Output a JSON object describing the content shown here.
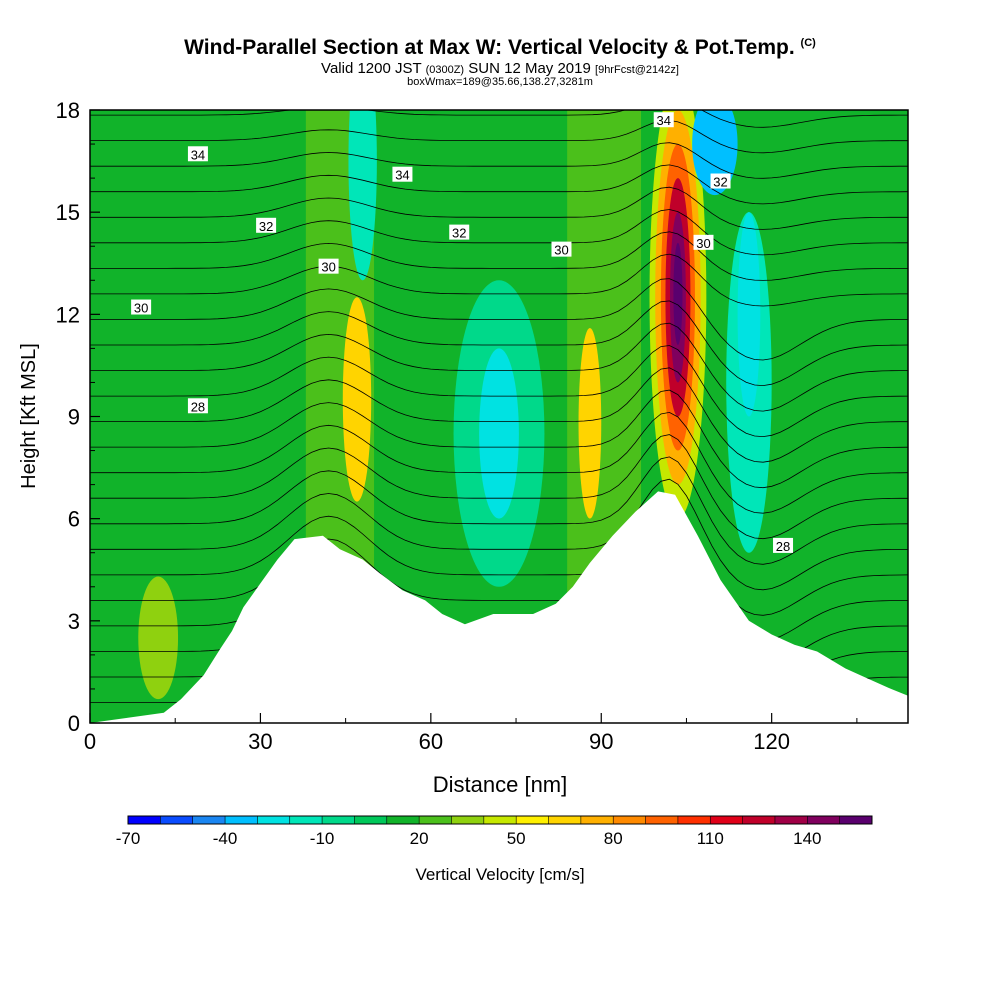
{
  "title": {
    "main": "Wind-Parallel Section at Max W: Vertical Velocity & Pot.Temp.",
    "copyright": "(C)",
    "valid_a": "Valid 1200 JST",
    "valid_z": "(0300Z)",
    "valid_b": "SUN 12 May 2019",
    "fcst": "[9hrFcst@2142z]",
    "box": "boxWmax=189@35.66,138.27,3281m"
  },
  "chart_data": {
    "type": "heatmap",
    "xlabel": "Distance [nm]",
    "ylabel": "Height [Kft MSL]",
    "xlim": [
      0,
      144
    ],
    "ylim": [
      0,
      18
    ],
    "x_ticks": [
      "0",
      "30",
      "60",
      "90",
      "120"
    ],
    "y_ticks": [
      "0",
      "3",
      "6",
      "9",
      "12",
      "15",
      "18"
    ],
    "colorbar": {
      "label": "Vertical Velocity [cm/s]",
      "tick_labels": [
        "-70",
        "-40",
        "-10",
        "20",
        "50",
        "80",
        "110",
        "140"
      ],
      "colors": [
        "#0000ff",
        "#0a4cff",
        "#1a86f2",
        "#00bfff",
        "#00e2e2",
        "#00e6b8",
        "#00d98a",
        "#00c85a",
        "#11b32a",
        "#4bc01b",
        "#8fd10f",
        "#c6e800",
        "#fff000",
        "#ffd400",
        "#ffb000",
        "#ff8a00",
        "#ff6200",
        "#ff3000",
        "#e00018",
        "#c0002a",
        "#a00046",
        "#80005e",
        "#5a006e"
      ]
    },
    "contour_labels": [
      {
        "text": "34",
        "x": 19,
        "y": 16.7
      },
      {
        "text": "34",
        "x": 55,
        "y": 16.1
      },
      {
        "text": "34",
        "x": 101,
        "y": 17.7
      },
      {
        "text": "32",
        "x": 31,
        "y": 14.6
      },
      {
        "text": "32",
        "x": 65,
        "y": 14.4
      },
      {
        "text": "32",
        "x": 111,
        "y": 15.9
      },
      {
        "text": "30",
        "x": 9,
        "y": 12.2
      },
      {
        "text": "30",
        "x": 42,
        "y": 13.4
      },
      {
        "text": "30",
        "x": 83,
        "y": 13.9
      },
      {
        "text": "30",
        "x": 108,
        "y": 14.1
      },
      {
        "text": "28",
        "x": 19,
        "y": 9.3
      },
      {
        "text": "28",
        "x": 122,
        "y": 5.2
      }
    ],
    "terrain": [
      [
        0,
        0
      ],
      [
        13,
        0.3
      ],
      [
        16,
        0.7
      ],
      [
        20,
        1.4
      ],
      [
        23,
        2.2
      ],
      [
        25,
        2.7
      ],
      [
        27,
        3.4
      ],
      [
        30,
        4.1
      ],
      [
        33,
        4.8
      ],
      [
        36,
        5.4
      ],
      [
        41,
        5.5
      ],
      [
        44,
        5.1
      ],
      [
        48,
        4.8
      ],
      [
        51,
        4.4
      ],
      [
        55,
        3.9
      ],
      [
        59,
        3.6
      ],
      [
        62,
        3.2
      ],
      [
        66,
        2.9
      ],
      [
        71,
        3.2
      ],
      [
        78,
        3.2
      ],
      [
        82,
        3.5
      ],
      [
        85,
        4.0
      ],
      [
        88,
        4.7
      ],
      [
        92,
        5.5
      ],
      [
        96,
        6.2
      ],
      [
        100,
        6.8
      ],
      [
        103,
        6.7
      ],
      [
        107,
        5.5
      ],
      [
        111,
        4.2
      ],
      [
        116,
        3.0
      ],
      [
        120,
        2.6
      ],
      [
        124,
        2.3
      ],
      [
        128,
        2.1
      ],
      [
        133,
        1.6
      ],
      [
        137,
        1.3
      ],
      [
        141,
        1.0
      ],
      [
        144,
        0.8
      ],
      [
        144,
        0
      ]
    ],
    "w_blobs": [
      {
        "x": 47,
        "y": 9.5,
        "rx": 2.5,
        "ry": 3.0,
        "w": 55
      },
      {
        "x": 47,
        "y": 9.5,
        "rx": 1.2,
        "ry": 2.0,
        "w": 62
      },
      {
        "x": 88,
        "y": 8.8,
        "rx": 2.0,
        "ry": 2.8,
        "w": 55
      },
      {
        "x": 88,
        "y": 8.8,
        "rx": 1.0,
        "ry": 1.8,
        "w": 62
      },
      {
        "x": 103.5,
        "y": 12.5,
        "rx": 5.0,
        "ry": 6.5,
        "w": 40
      },
      {
        "x": 103.5,
        "y": 12.5,
        "rx": 4.0,
        "ry": 5.5,
        "w": 65
      },
      {
        "x": 103.5,
        "y": 12.5,
        "rx": 3.0,
        "ry": 4.5,
        "w": 90
      },
      {
        "x": 103.5,
        "y": 12.5,
        "rx": 2.2,
        "ry": 3.5,
        "w": 115
      },
      {
        "x": 103.5,
        "y": 12.5,
        "rx": 1.4,
        "ry": 2.5,
        "w": 140
      },
      {
        "x": 103.5,
        "y": 12.6,
        "rx": 0.8,
        "ry": 1.5,
        "w": 160
      },
      {
        "x": 72,
        "y": 8.5,
        "rx": 8.0,
        "ry": 4.5,
        "w": -15
      },
      {
        "x": 72,
        "y": 8.5,
        "rx": 3.5,
        "ry": 2.5,
        "w": -35
      },
      {
        "x": 116,
        "y": 10.0,
        "rx": 4.0,
        "ry": 5.0,
        "w": -20
      },
      {
        "x": 116,
        "y": 12.0,
        "rx": 2.0,
        "ry": 3.0,
        "w": -35
      },
      {
        "x": 110,
        "y": 17.0,
        "rx": 4.0,
        "ry": 1.5,
        "w": -45
      },
      {
        "x": 48,
        "y": 16.5,
        "rx": 2.5,
        "ry": 3.5,
        "w": -25
      },
      {
        "x": 12,
        "y": 2.5,
        "rx": 3.5,
        "ry": 1.8,
        "w": 25
      }
    ]
  }
}
